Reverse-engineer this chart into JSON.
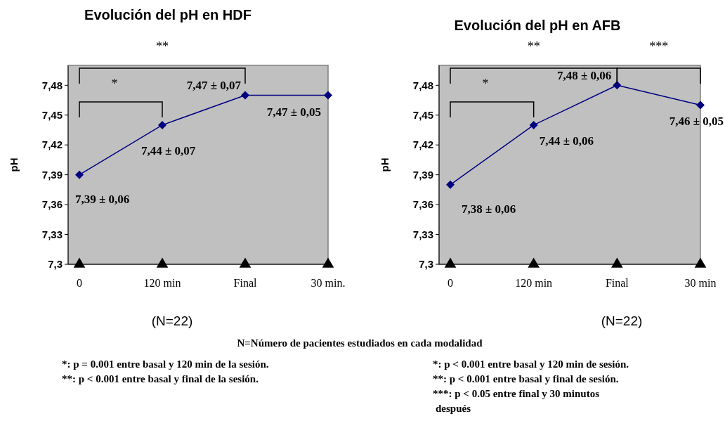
{
  "chart_data": [
    {
      "type": "line",
      "title": "Evolución del pH en HDF",
      "ylabel": "pH",
      "categories": [
        "0",
        "120 min",
        "Final",
        "30 min."
      ],
      "ylim": [
        7.3,
        7.5
      ],
      "yticks": [
        {
          "value": 7.3,
          "label": "7,3"
        },
        {
          "value": 7.33,
          "label": "7,33"
        },
        {
          "value": 7.36,
          "label": "7,36"
        },
        {
          "value": 7.39,
          "label": "7,39"
        },
        {
          "value": 7.42,
          "label": "7,42"
        },
        {
          "value": 7.45,
          "label": "7,45"
        },
        {
          "value": 7.48,
          "label": "7,48"
        }
      ],
      "grid": false,
      "line_style": "solid",
      "series": [
        {
          "type": "line",
          "color": "#000080",
          "marker": "diamond",
          "values": [
            7.39,
            7.44,
            7.47,
            7.47
          ],
          "value_labels": [
            "7,39 ± 0,06",
            "7,44 ± 0,07",
            "7,47 ± 0,07",
            "7,47 ± 0,05"
          ]
        },
        {
          "type": "scatter",
          "color": "#000000",
          "marker": "triangle",
          "values": [
            7.3,
            7.3,
            7.3,
            7.3
          ]
        }
      ],
      "annotations": [
        "*",
        "**",
        "(N=22)",
        "N=Número de pacientes estudiados en cada modalidad",
        "*: p = 0.001 entre basal y 120 min de la sesión.",
        "**: p < 0.001 entre basal y final de la sesión."
      ]
    },
    {
      "type": "line",
      "title": "Evolución del pH en AFB",
      "ylabel": "pH",
      "categories": [
        "0",
        "120 min",
        "Final",
        "30 min"
      ],
      "ylim": [
        7.3,
        7.5
      ],
      "yticks": [
        {
          "value": 7.3,
          "label": "7,3"
        },
        {
          "value": 7.33,
          "label": "7,33"
        },
        {
          "value": 7.36,
          "label": "7,36"
        },
        {
          "value": 7.39,
          "label": "7,39"
        },
        {
          "value": 7.42,
          "label": "7,42"
        },
        {
          "value": 7.45,
          "label": "7,45"
        },
        {
          "value": 7.48,
          "label": "7,48"
        }
      ],
      "grid": false,
      "line_style": "solid",
      "series": [
        {
          "type": "line",
          "color": "#000080",
          "marker": "diamond",
          "values": [
            7.38,
            7.44,
            7.48,
            7.46
          ],
          "value_labels": [
            "7,38 ± 0,06",
            "7,44 ± 0,06",
            "7,48 ± 0,06",
            "7,46 ± 0,05"
          ]
        },
        {
          "type": "scatter",
          "color": "#000000",
          "marker": "triangle",
          "values": [
            7.3,
            7.3,
            7.3,
            7.3
          ]
        }
      ],
      "annotations": [
        "*",
        "**",
        "***",
        "(N=22)",
        "*: p < 0.001 entre basal y 120 min de sesión.",
        "**: p < 0.001 entre basal y final de sesión.",
        "***: p < 0.05 entre final y 30 minutos después"
      ]
    }
  ]
}
